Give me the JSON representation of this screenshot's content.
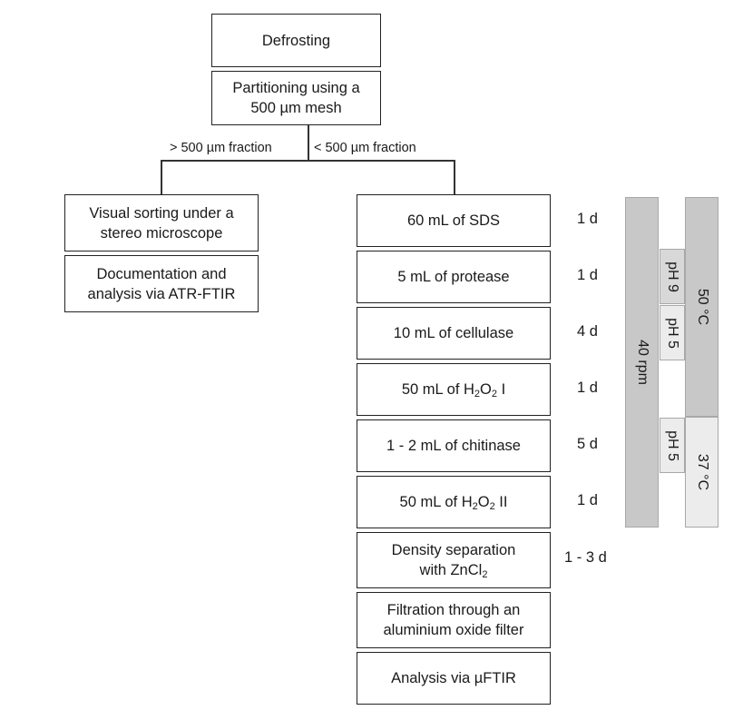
{
  "top_steps": {
    "defrosting": "Defrosting",
    "partitioning_line1": "Partitioning using a",
    "partitioning_line2": "500 µm mesh"
  },
  "fractions": {
    "large": "> 500 µm fraction",
    "small": "< 500 µm fraction"
  },
  "left_branch": [
    {
      "line1": "Visual sorting under a",
      "line2": "stereo microscope"
    },
    {
      "line1": "Documentation and",
      "line2": "analysis via ATR-FTIR"
    }
  ],
  "steps": {
    "sds": "60 mL of SDS",
    "protease": "5 mL of protease",
    "cellulase": "10 mL of cellulase",
    "h2o2_1_pre": "50 mL of H",
    "h2o2_1_sub1": "2",
    "h2o2_1_mid": "O",
    "h2o2_1_sub2": "2",
    "h2o2_1_post": " I",
    "chitinase": "1 - 2 mL of chitinase",
    "h2o2_2_pre": "50 mL of H",
    "h2o2_2_sub1": "2",
    "h2o2_2_mid": "O",
    "h2o2_2_sub2": "2",
    "h2o2_2_post": " II",
    "density_line1": "Density separation",
    "density_line2_pre": "with ZnCl",
    "density_line2_sub": "2",
    "filtration_line1": "Filtration through an",
    "filtration_line2": "aluminium oxide filter",
    "analysis": "Analysis via µFTIR"
  },
  "durations": {
    "sds": "1 d",
    "protease": "1 d",
    "cellulase": "4 d",
    "h2o2_1": "1 d",
    "chitinase": "5 d",
    "h2o2_2": "1 d",
    "density": "1 - 3 d"
  },
  "conditions": {
    "rpm": "40 rpm",
    "ph9": "pH 9",
    "ph5_a": "pH 5",
    "ph5_b": "pH 5",
    "temp_50": "50 °C",
    "temp_37": "37 °C"
  },
  "colors": {
    "dark_bar": "#c8c8c8",
    "mid_bar": "#d8d8d8",
    "light_bar": "#ececec",
    "border": "#222222"
  }
}
